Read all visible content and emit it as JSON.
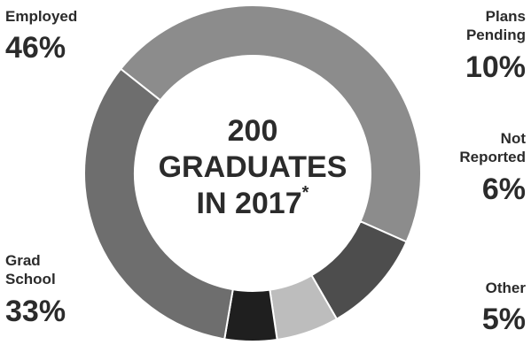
{
  "chart_data": {
    "type": "pie",
    "subtype": "donut",
    "center_label": {
      "line1": "200",
      "line2": "GRADUATES",
      "line3": "IN 2017",
      "footnote_mark": "*"
    },
    "slices": [
      {
        "name_lines": [
          "Employed"
        ],
        "value": 46,
        "label": "46%",
        "color": "#8c8c8c"
      },
      {
        "name_lines": [
          "Plans",
          "Pending"
        ],
        "value": 10,
        "label": "10%",
        "color": "#4d4d4d"
      },
      {
        "name_lines": [
          "Not",
          "Reported"
        ],
        "value": 6,
        "label": "6%",
        "color": "#bdbdbd"
      },
      {
        "name_lines": [
          "Other"
        ],
        "value": 5,
        "label": "5%",
        "color": "#1f1f1f"
      },
      {
        "name_lines": [
          "Grad",
          "School"
        ],
        "value": 33,
        "label": "33%",
        "color": "#6e6e6e"
      }
    ]
  }
}
